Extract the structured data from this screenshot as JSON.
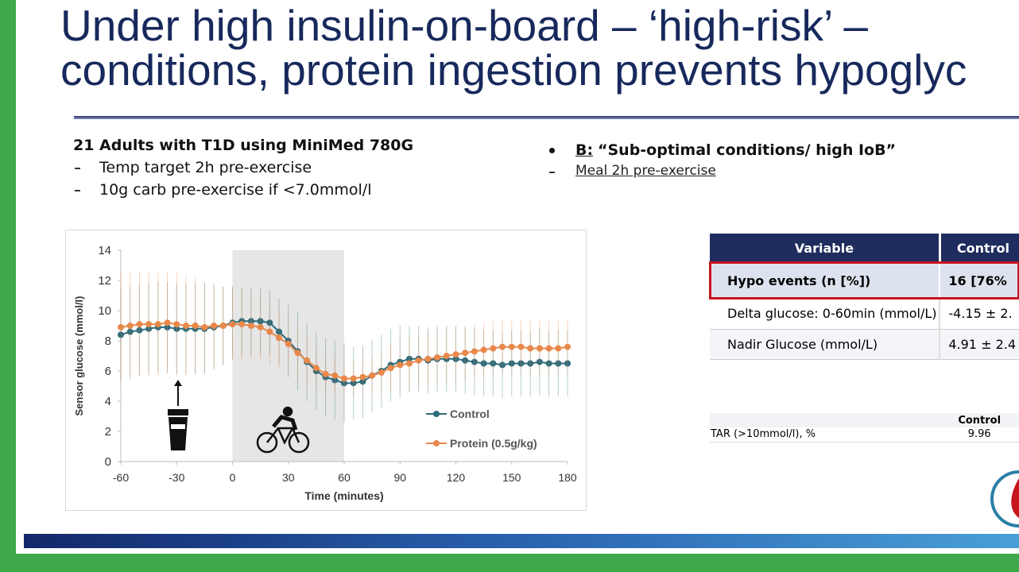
{
  "title": {
    "lines": [
      "Under high insulin-on-board – ‘high-risk’ –",
      "conditions, protein ingestion prevents hypoglyc"
    ]
  },
  "left": {
    "heading": "21 Adults with T1D using MiniMed 780G",
    "bullets": [
      "Temp target 2h pre-exercise",
      "10g carb pre-exercise if <7.0mmol/l"
    ]
  },
  "right": {
    "label": "B:",
    "heading": "“Sub-optimal conditions/ high IoB”",
    "bullets": [
      "Meal 2h pre-exercise"
    ]
  },
  "chart_data": {
    "type": "line",
    "x_label": "Time (minutes)",
    "y_label": "Sensor glucose (mmol/l)",
    "x": [
      -60,
      -55,
      -50,
      -45,
      -40,
      -35,
      -30,
      -25,
      -20,
      -15,
      -10,
      -5,
      0,
      5,
      10,
      15,
      20,
      25,
      30,
      35,
      40,
      45,
      50,
      55,
      60,
      65,
      70,
      75,
      80,
      85,
      90,
      95,
      100,
      105,
      110,
      115,
      120,
      125,
      130,
      135,
      140,
      145,
      150,
      155,
      160,
      165,
      170,
      175,
      180
    ],
    "series": [
      {
        "name": "Control",
        "color": "#2f6c7c",
        "values": [
          8.4,
          8.6,
          8.7,
          8.8,
          8.9,
          8.9,
          8.8,
          8.8,
          8.8,
          8.8,
          8.9,
          9.0,
          9.2,
          9.3,
          9.3,
          9.3,
          9.2,
          8.6,
          8.0,
          7.3,
          6.6,
          6.0,
          5.6,
          5.4,
          5.2,
          5.2,
          5.3,
          5.7,
          6.0,
          6.4,
          6.6,
          6.8,
          6.8,
          6.7,
          6.8,
          6.8,
          6.8,
          6.7,
          6.6,
          6.5,
          6.5,
          6.4,
          6.5,
          6.5,
          6.5,
          6.6,
          6.5,
          6.5,
          6.5
        ],
        "errors": [
          3.0,
          3.0,
          3.0,
          3.0,
          3.0,
          3.0,
          3.0,
          3.0,
          3.0,
          3.0,
          2.8,
          2.6,
          2.4,
          2.2,
          2.2,
          2.2,
          2.2,
          2.2,
          2.4,
          2.6,
          2.6,
          2.6,
          2.6,
          2.6,
          2.6,
          2.4,
          2.4,
          2.4,
          2.4,
          2.4,
          2.4,
          2.2,
          2.2,
          2.2,
          2.2,
          2.2,
          2.2,
          2.2,
          2.2,
          2.2,
          2.2,
          2.2,
          2.2,
          2.2,
          2.2,
          2.2,
          2.2,
          2.2,
          2.2
        ]
      },
      {
        "name": "Protein (0.5g/kg)",
        "color": "#e8884a",
        "values": [
          8.9,
          9.0,
          9.1,
          9.1,
          9.1,
          9.2,
          9.1,
          9.0,
          9.0,
          8.9,
          9.0,
          9.0,
          9.1,
          9.1,
          9.0,
          8.9,
          8.6,
          8.2,
          7.8,
          7.2,
          6.7,
          6.2,
          5.8,
          5.7,
          5.5,
          5.5,
          5.6,
          5.7,
          5.9,
          6.2,
          6.4,
          6.5,
          6.7,
          6.8,
          6.9,
          7.0,
          7.1,
          7.2,
          7.3,
          7.4,
          7.5,
          7.6,
          7.6,
          7.6,
          7.5,
          7.5,
          7.5,
          7.5,
          7.6
        ],
        "errors": [
          3.6,
          3.6,
          3.5,
          3.5,
          3.4,
          3.4,
          3.4,
          3.3,
          3.2,
          3.0,
          2.8,
          2.6,
          2.4,
          2.4,
          2.2,
          2.2,
          2.2,
          2.0,
          2.0,
          1.8,
          1.6,
          1.4,
          1.2,
          1.2,
          1.2,
          1.2,
          1.2,
          1.2,
          1.4,
          1.6,
          1.8,
          1.8,
          1.8,
          1.8,
          1.8,
          1.8,
          1.8,
          1.8,
          1.8,
          1.8,
          1.8,
          1.8,
          1.8,
          1.8,
          1.8,
          1.8,
          1.8,
          1.8,
          1.8
        ]
      }
    ],
    "shaded_region": [
      0,
      60
    ],
    "xlim": [
      -60,
      180
    ],
    "xticks": [
      -60,
      -30,
      0,
      30,
      60,
      90,
      120,
      150,
      180
    ],
    "ylim": [
      0,
      14
    ],
    "yticks": [
      0,
      2,
      4,
      6,
      8,
      10,
      12,
      14
    ]
  },
  "table": {
    "header": [
      "Variable",
      "Control"
    ],
    "rows": [
      [
        "Hypo events (n [%])",
        "16 [76%"
      ],
      [
        "Delta glucose: 0-60min (mmol/L)",
        "-4.15 ± 2."
      ],
      [
        "Nadir Glucose (mmol/L)",
        "4.91 ± 2.4"
      ]
    ]
  },
  "table2": {
    "header": [
      "Control"
    ],
    "rows": [
      [
        "TAR (>10mmol/l), %",
        "9.96"
      ]
    ]
  }
}
